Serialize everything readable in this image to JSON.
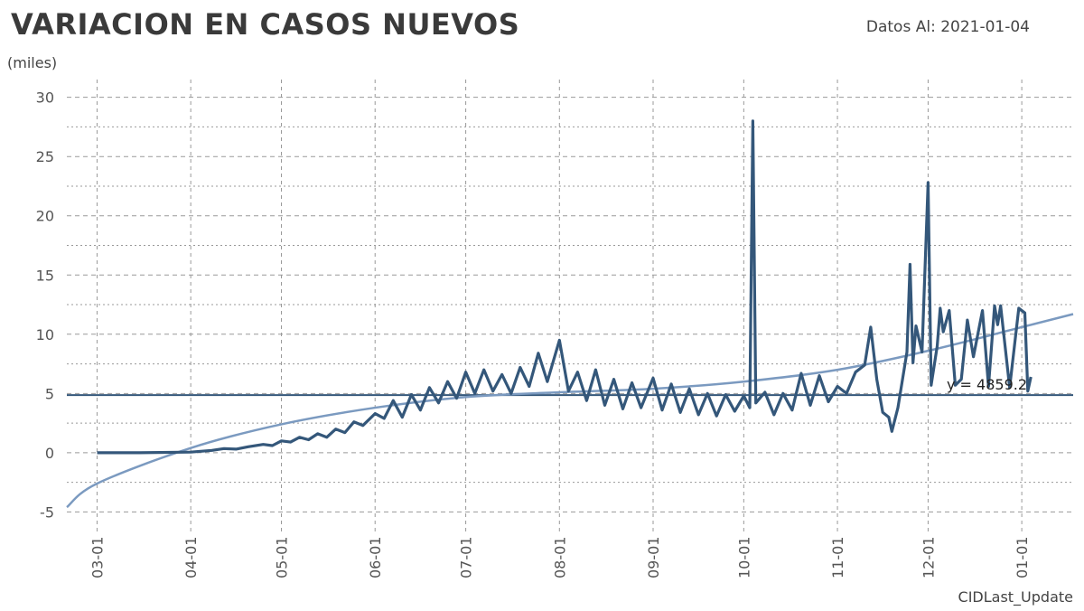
{
  "header": {
    "title": "VARIACION EN CASOS NUEVOS",
    "date_label": "Datos Al: 2021-01-04",
    "unit": "(miles)"
  },
  "footer": {
    "label": "CIDLast_Update"
  },
  "colors": {
    "series": "#34577a",
    "trend": "#7b9ac0",
    "reference": "#34577a",
    "grid": "#999999"
  },
  "chart_data": {
    "type": "line",
    "title": "VARIACION EN CASOS NUEVOS",
    "ylabel": "(miles)",
    "xlabel": "",
    "ylim": [
      -6.8,
      31.5
    ],
    "yticks": [
      -5,
      0,
      5,
      10,
      15,
      20,
      25,
      30
    ],
    "x_range": [
      "2020-02-20",
      "2021-01-18"
    ],
    "xticks": [
      {
        "date": "2020-03-01",
        "label": "03-01"
      },
      {
        "date": "2020-04-01",
        "label": "04-01"
      },
      {
        "date": "2020-05-01",
        "label": "05-01"
      },
      {
        "date": "2020-06-01",
        "label": "06-01"
      },
      {
        "date": "2020-07-01",
        "label": "07-01"
      },
      {
        "date": "2020-08-01",
        "label": "08-01"
      },
      {
        "date": "2020-09-01",
        "label": "09-01"
      },
      {
        "date": "2020-10-01",
        "label": "10-01"
      },
      {
        "date": "2020-11-01",
        "label": "11-01"
      },
      {
        "date": "2020-12-01",
        "label": "12-01"
      },
      {
        "date": "2021-01-01",
        "label": "01-01"
      }
    ],
    "series": [
      {
        "values": [
          [
            "2020-03-01",
            0
          ],
          [
            "2020-03-15",
            0
          ],
          [
            "2020-04-01",
            0.05
          ],
          [
            "2020-04-08",
            0.2
          ],
          [
            "2020-04-12",
            0.35
          ],
          [
            "2020-04-16",
            0.3
          ],
          [
            "2020-04-20",
            0.5
          ],
          [
            "2020-04-25",
            0.7
          ],
          [
            "2020-04-28",
            0.6
          ],
          [
            "2020-05-01",
            1.0
          ],
          [
            "2020-05-04",
            0.9
          ],
          [
            "2020-05-07",
            1.3
          ],
          [
            "2020-05-10",
            1.1
          ],
          [
            "2020-05-13",
            1.6
          ],
          [
            "2020-05-16",
            1.3
          ],
          [
            "2020-05-19",
            2.0
          ],
          [
            "2020-05-22",
            1.7
          ],
          [
            "2020-05-25",
            2.6
          ],
          [
            "2020-05-28",
            2.3
          ],
          [
            "2020-06-01",
            3.3
          ],
          [
            "2020-06-04",
            2.9
          ],
          [
            "2020-06-07",
            4.4
          ],
          [
            "2020-06-10",
            3.0
          ],
          [
            "2020-06-13",
            4.9
          ],
          [
            "2020-06-16",
            3.6
          ],
          [
            "2020-06-19",
            5.5
          ],
          [
            "2020-06-22",
            4.2
          ],
          [
            "2020-06-25",
            6.0
          ],
          [
            "2020-06-28",
            4.6
          ],
          [
            "2020-07-01",
            6.8
          ],
          [
            "2020-07-04",
            5.0
          ],
          [
            "2020-07-07",
            7.0
          ],
          [
            "2020-07-10",
            5.2
          ],
          [
            "2020-07-13",
            6.6
          ],
          [
            "2020-07-16",
            5.0
          ],
          [
            "2020-07-19",
            7.2
          ],
          [
            "2020-07-22",
            5.6
          ],
          [
            "2020-07-25",
            8.4
          ],
          [
            "2020-07-28",
            6.0
          ],
          [
            "2020-08-01",
            9.5
          ],
          [
            "2020-08-04",
            5.2
          ],
          [
            "2020-08-07",
            6.8
          ],
          [
            "2020-08-10",
            4.4
          ],
          [
            "2020-08-13",
            7.0
          ],
          [
            "2020-08-16",
            4.0
          ],
          [
            "2020-08-19",
            6.2
          ],
          [
            "2020-08-22",
            3.7
          ],
          [
            "2020-08-25",
            5.9
          ],
          [
            "2020-08-28",
            3.8
          ],
          [
            "2020-09-01",
            6.3
          ],
          [
            "2020-09-04",
            3.6
          ],
          [
            "2020-09-07",
            5.8
          ],
          [
            "2020-09-10",
            3.4
          ],
          [
            "2020-09-13",
            5.4
          ],
          [
            "2020-09-16",
            3.2
          ],
          [
            "2020-09-19",
            5.0
          ],
          [
            "2020-09-22",
            3.1
          ],
          [
            "2020-09-25",
            4.9
          ],
          [
            "2020-09-28",
            3.5
          ],
          [
            "2020-10-01",
            4.8
          ],
          [
            "2020-10-03",
            3.8
          ],
          [
            "2020-10-04",
            28.0
          ],
          [
            "2020-10-05",
            4.2
          ],
          [
            "2020-10-08",
            5.1
          ],
          [
            "2020-10-11",
            3.2
          ],
          [
            "2020-10-14",
            5.0
          ],
          [
            "2020-10-17",
            3.6
          ],
          [
            "2020-10-20",
            6.7
          ],
          [
            "2020-10-23",
            4.0
          ],
          [
            "2020-10-26",
            6.5
          ],
          [
            "2020-10-29",
            4.3
          ],
          [
            "2020-11-01",
            5.6
          ],
          [
            "2020-11-04",
            5.0
          ],
          [
            "2020-11-07",
            6.8
          ],
          [
            "2020-11-10",
            7.4
          ],
          [
            "2020-11-12",
            10.6
          ],
          [
            "2020-11-14",
            6.2
          ],
          [
            "2020-11-16",
            3.4
          ],
          [
            "2020-11-18",
            3.0
          ],
          [
            "2020-11-19",
            1.8
          ],
          [
            "2020-11-21",
            3.8
          ],
          [
            "2020-11-24",
            8.5
          ],
          [
            "2020-11-25",
            15.9
          ],
          [
            "2020-11-26",
            7.6
          ],
          [
            "2020-11-27",
            10.7
          ],
          [
            "2020-11-29",
            8.5
          ],
          [
            "2020-12-01",
            22.8
          ],
          [
            "2020-12-02",
            5.7
          ],
          [
            "2020-12-04",
            9.0
          ],
          [
            "2020-12-05",
            12.2
          ],
          [
            "2020-12-06",
            10.2
          ],
          [
            "2020-12-08",
            12.0
          ],
          [
            "2020-12-10",
            5.7
          ],
          [
            "2020-12-12",
            6.2
          ],
          [
            "2020-12-14",
            11.2
          ],
          [
            "2020-12-16",
            8.1
          ],
          [
            "2020-12-19",
            12.0
          ],
          [
            "2020-12-21",
            5.6
          ],
          [
            "2020-12-23",
            12.4
          ],
          [
            "2020-12-24",
            10.8
          ],
          [
            "2020-12-25",
            12.4
          ],
          [
            "2020-12-28",
            5.5
          ],
          [
            "2020-12-31",
            12.2
          ],
          [
            "2021-01-02",
            11.8
          ],
          [
            "2021-01-03",
            5.2
          ],
          [
            "2021-01-04",
            6.4
          ]
        ]
      }
    ],
    "trend_line": {
      "type": "polynomial",
      "points": [
        [
          "2020-02-20",
          -4.6
        ],
        [
          "2020-03-01",
          -2.6
        ],
        [
          "2020-04-01",
          0.4
        ],
        [
          "2020-05-01",
          2.4
        ],
        [
          "2020-06-01",
          3.8
        ],
        [
          "2020-07-01",
          4.7
        ],
        [
          "2020-08-01",
          5.1
        ],
        [
          "2020-09-01",
          5.4
        ],
        [
          "2020-10-01",
          6.0
        ],
        [
          "2020-11-01",
          7.0
        ],
        [
          "2020-12-01",
          8.6
        ],
        [
          "2021-01-01",
          10.6
        ],
        [
          "2021-01-18",
          11.7
        ]
      ]
    },
    "reference_line": {
      "y": 4.8592,
      "label": "y = 4859.2"
    }
  }
}
